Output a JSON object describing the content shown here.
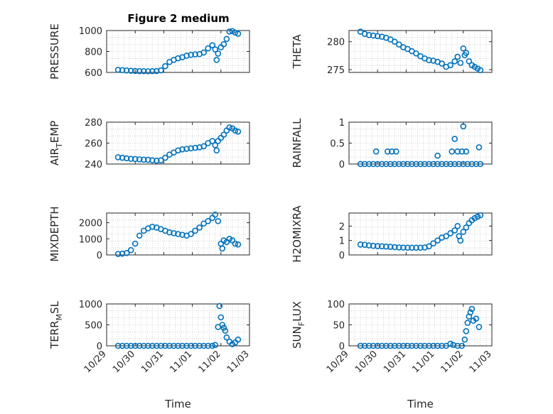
{
  "figure": {
    "title": "Figure 2 medium",
    "background": "#ffffff",
    "marker_color": "#0072BD",
    "axis_color": "#262626",
    "grid_color": "#c8c8c8"
  },
  "chart_data": [
    {
      "type": "scatter",
      "id": "pressure",
      "ylabel": "PRESSURE",
      "ylabel_sub": "",
      "xlabel": "",
      "ylim": [
        600,
        1000
      ],
      "yticks": [
        600,
        800,
        1000
      ],
      "ytick_labels": [
        "600",
        "800",
        "1000"
      ],
      "xlim": [
        0,
        5
      ],
      "xtick_labels_shown": false,
      "grid": true,
      "points": [
        [
          0.4,
          625
        ],
        [
          0.55,
          622
        ],
        [
          0.7,
          619
        ],
        [
          0.85,
          616
        ],
        [
          1.0,
          614
        ],
        [
          1.15,
          612
        ],
        [
          1.3,
          612
        ],
        [
          1.45,
          611
        ],
        [
          1.6,
          612
        ],
        [
          1.75,
          613
        ],
        [
          1.9,
          620
        ],
        [
          2.05,
          660
        ],
        [
          2.2,
          700
        ],
        [
          2.35,
          720
        ],
        [
          2.5,
          735
        ],
        [
          2.65,
          745
        ],
        [
          2.8,
          760
        ],
        [
          2.95,
          768
        ],
        [
          3.1,
          772
        ],
        [
          3.25,
          775
        ],
        [
          3.4,
          790
        ],
        [
          3.55,
          830
        ],
        [
          3.7,
          860
        ],
        [
          3.8,
          820
        ],
        [
          3.85,
          720
        ],
        [
          3.9,
          780
        ],
        [
          4.0,
          840
        ],
        [
          4.1,
          870
        ],
        [
          4.2,
          920
        ],
        [
          4.3,
          990
        ],
        [
          4.4,
          995
        ],
        [
          4.5,
          980
        ],
        [
          4.6,
          970
        ]
      ]
    },
    {
      "type": "scatter",
      "id": "theta",
      "ylabel": "THETA",
      "ylabel_sub": "",
      "xlabel": "",
      "ylim": [
        274.5,
        282
      ],
      "yticks": [
        275,
        280
      ],
      "ytick_labels": [
        "275",
        "280"
      ],
      "xlim": [
        0,
        5
      ],
      "xtick_labels_shown": false,
      "grid": true,
      "points": [
        [
          0.4,
          281.8
        ],
        [
          0.55,
          281.4
        ],
        [
          0.7,
          281.2
        ],
        [
          0.85,
          281.1
        ],
        [
          1.0,
          281.0
        ],
        [
          1.15,
          280.9
        ],
        [
          1.3,
          280.7
        ],
        [
          1.45,
          280.4
        ],
        [
          1.6,
          280.0
        ],
        [
          1.75,
          279.5
        ],
        [
          1.9,
          279.0
        ],
        [
          2.05,
          278.7
        ],
        [
          2.2,
          278.3
        ],
        [
          2.35,
          277.9
        ],
        [
          2.5,
          277.4
        ],
        [
          2.65,
          277.0
        ],
        [
          2.8,
          276.7
        ],
        [
          2.95,
          276.6
        ],
        [
          3.1,
          276.4
        ],
        [
          3.25,
          276.1
        ],
        [
          3.4,
          275.5
        ],
        [
          3.55,
          275.8
        ],
        [
          3.7,
          276.5
        ],
        [
          3.8,
          277.3
        ],
        [
          3.9,
          276.2
        ],
        [
          4.0,
          278.8
        ],
        [
          4.05,
          277.6
        ],
        [
          4.1,
          278.0
        ],
        [
          4.2,
          276.5
        ],
        [
          4.3,
          275.8
        ],
        [
          4.4,
          275.5
        ],
        [
          4.5,
          275.2
        ],
        [
          4.6,
          274.9
        ]
      ]
    },
    {
      "type": "scatter",
      "id": "air_temp",
      "ylabel": "AIR",
      "ylabel_sub": "T",
      "ylabel_suffix": "EMP",
      "xlabel": "",
      "ylim": [
        240,
        280
      ],
      "yticks": [
        240,
        260,
        280
      ],
      "ytick_labels": [
        "240",
        "260",
        "280"
      ],
      "xlim": [
        0,
        5
      ],
      "xtick_labels_shown": false,
      "grid": true,
      "points": [
        [
          0.4,
          246.5
        ],
        [
          0.55,
          246
        ],
        [
          0.7,
          245.5
        ],
        [
          0.85,
          245
        ],
        [
          1.0,
          244.8
        ],
        [
          1.15,
          244.5
        ],
        [
          1.3,
          244.2
        ],
        [
          1.45,
          244
        ],
        [
          1.6,
          243.5
        ],
        [
          1.75,
          243.2
        ],
        [
          1.9,
          243.5
        ],
        [
          2.05,
          246
        ],
        [
          2.2,
          249
        ],
        [
          2.35,
          251
        ],
        [
          2.5,
          253
        ],
        [
          2.65,
          254
        ],
        [
          2.8,
          254.5
        ],
        [
          2.95,
          255
        ],
        [
          3.1,
          255.5
        ],
        [
          3.25,
          256
        ],
        [
          3.4,
          257
        ],
        [
          3.55,
          260
        ],
        [
          3.7,
          262
        ],
        [
          3.8,
          258
        ],
        [
          3.85,
          253
        ],
        [
          3.9,
          262
        ],
        [
          4.0,
          265
        ],
        [
          4.1,
          268
        ],
        [
          4.2,
          272
        ],
        [
          4.3,
          275
        ],
        [
          4.4,
          274
        ],
        [
          4.5,
          272
        ],
        [
          4.6,
          271
        ]
      ]
    },
    {
      "type": "scatter",
      "id": "rainfall",
      "ylabel": "RAINFALL",
      "ylabel_sub": "",
      "xlabel": "",
      "ylim": [
        0,
        1
      ],
      "yticks": [
        0,
        0.5,
        1
      ],
      "ytick_labels": [
        "0",
        "0.5",
        "1"
      ],
      "xlim": [
        0,
        5
      ],
      "xtick_labels_shown": false,
      "grid": true,
      "points": [
        [
          0.4,
          0
        ],
        [
          0.55,
          0
        ],
        [
          0.7,
          0
        ],
        [
          0.85,
          0
        ],
        [
          1.0,
          0
        ],
        [
          1.15,
          0
        ],
        [
          1.3,
          0
        ],
        [
          1.45,
          0
        ],
        [
          1.6,
          0
        ],
        [
          1.75,
          0
        ],
        [
          1.9,
          0
        ],
        [
          2.05,
          0
        ],
        [
          2.2,
          0
        ],
        [
          2.35,
          0
        ],
        [
          2.5,
          0
        ],
        [
          2.65,
          0
        ],
        [
          2.8,
          0
        ],
        [
          2.95,
          0
        ],
        [
          3.1,
          0
        ],
        [
          3.25,
          0
        ],
        [
          3.4,
          0
        ],
        [
          3.55,
          0
        ],
        [
          3.7,
          0
        ],
        [
          3.85,
          0
        ],
        [
          4.0,
          0
        ],
        [
          4.15,
          0
        ],
        [
          4.3,
          0
        ],
        [
          4.45,
          0
        ],
        [
          4.6,
          0
        ],
        [
          0.95,
          0.3
        ],
        [
          1.35,
          0.3
        ],
        [
          1.5,
          0.3
        ],
        [
          1.65,
          0.3
        ],
        [
          3.1,
          0.2
        ],
        [
          3.6,
          0.3
        ],
        [
          3.7,
          0.6
        ],
        [
          3.8,
          0.3
        ],
        [
          3.95,
          0.3
        ],
        [
          4.0,
          0.9
        ],
        [
          4.1,
          0.3
        ],
        [
          4.55,
          0.4
        ]
      ]
    },
    {
      "type": "scatter",
      "id": "mixdepth",
      "ylabel": "MIXDEPTH",
      "ylabel_sub": "",
      "xlabel": "",
      "ylim": [
        0,
        2600
      ],
      "yticks": [
        0,
        1000,
        2000
      ],
      "ytick_labels": [
        "0",
        "1000",
        "2000"
      ],
      "xlim": [
        0,
        5
      ],
      "xtick_labels_shown": false,
      "grid": true,
      "points": [
        [
          0.4,
          60
        ],
        [
          0.55,
          80
        ],
        [
          0.7,
          120
        ],
        [
          0.85,
          300
        ],
        [
          1.0,
          700
        ],
        [
          1.15,
          1200
        ],
        [
          1.3,
          1500
        ],
        [
          1.45,
          1650
        ],
        [
          1.6,
          1750
        ],
        [
          1.75,
          1700
        ],
        [
          1.9,
          1600
        ],
        [
          2.05,
          1500
        ],
        [
          2.2,
          1400
        ],
        [
          2.35,
          1350
        ],
        [
          2.5,
          1300
        ],
        [
          2.65,
          1250
        ],
        [
          2.8,
          1200
        ],
        [
          2.95,
          1300
        ],
        [
          3.1,
          1500
        ],
        [
          3.25,
          1700
        ],
        [
          3.4,
          1950
        ],
        [
          3.55,
          2100
        ],
        [
          3.7,
          2300
        ],
        [
          3.8,
          2500
        ],
        [
          3.9,
          2100
        ],
        [
          4.0,
          700
        ],
        [
          4.05,
          400
        ],
        [
          4.1,
          900
        ],
        [
          4.2,
          800
        ],
        [
          4.3,
          1000
        ],
        [
          4.4,
          900
        ],
        [
          4.5,
          700
        ],
        [
          4.6,
          650
        ]
      ]
    },
    {
      "type": "scatter",
      "id": "h2omixra",
      "ylabel": "H2OMIXRA",
      "ylabel_sub": "",
      "xlabel": "",
      "ylim": [
        0,
        2.9
      ],
      "yticks": [
        0,
        1,
        2
      ],
      "ytick_labels": [
        "0",
        "1",
        "2"
      ],
      "xlim": [
        0,
        5
      ],
      "xtick_labels_shown": false,
      "grid": true,
      "points": [
        [
          0.4,
          0.72
        ],
        [
          0.55,
          0.7
        ],
        [
          0.7,
          0.66
        ],
        [
          0.85,
          0.63
        ],
        [
          1.0,
          0.61
        ],
        [
          1.15,
          0.6
        ],
        [
          1.3,
          0.58
        ],
        [
          1.45,
          0.56
        ],
        [
          1.6,
          0.54
        ],
        [
          1.75,
          0.52
        ],
        [
          1.9,
          0.51
        ],
        [
          2.05,
          0.5
        ],
        [
          2.2,
          0.5
        ],
        [
          2.35,
          0.5
        ],
        [
          2.5,
          0.5
        ],
        [
          2.65,
          0.52
        ],
        [
          2.8,
          0.6
        ],
        [
          2.95,
          0.8
        ],
        [
          3.1,
          1.0
        ],
        [
          3.25,
          1.2
        ],
        [
          3.4,
          1.3
        ],
        [
          3.55,
          1.5
        ],
        [
          3.7,
          1.7
        ],
        [
          3.8,
          2.0
        ],
        [
          3.85,
          1.3
        ],
        [
          3.9,
          1.0
        ],
        [
          4.0,
          1.6
        ],
        [
          4.1,
          1.9
        ],
        [
          4.2,
          2.2
        ],
        [
          4.3,
          2.4
        ],
        [
          4.4,
          2.55
        ],
        [
          4.5,
          2.65
        ],
        [
          4.6,
          2.75
        ]
      ]
    },
    {
      "type": "scatter",
      "id": "terr_msl",
      "ylabel": "TERR",
      "ylabel_sub": "M",
      "ylabel_suffix": "SL",
      "xlabel": "Time",
      "ylim": [
        0,
        1000
      ],
      "yticks": [
        0,
        500,
        1000
      ],
      "ytick_labels": [
        "0",
        "500",
        "1000"
      ],
      "xlim": [
        0,
        5
      ],
      "xtick_labels_shown": true,
      "xticks": [
        0,
        1,
        2,
        3,
        4,
        5
      ],
      "xtick_labels": [
        "10/29",
        "10/30",
        "10/31",
        "11/01",
        "11/02",
        "11/03"
      ],
      "grid": true,
      "points": [
        [
          0.4,
          0
        ],
        [
          0.55,
          0
        ],
        [
          0.7,
          0
        ],
        [
          0.85,
          0
        ],
        [
          1.0,
          0
        ],
        [
          1.15,
          0
        ],
        [
          1.3,
          0
        ],
        [
          1.45,
          0
        ],
        [
          1.6,
          0
        ],
        [
          1.75,
          0
        ],
        [
          1.9,
          0
        ],
        [
          2.05,
          0
        ],
        [
          2.2,
          0
        ],
        [
          2.35,
          0
        ],
        [
          2.5,
          0
        ],
        [
          2.65,
          0
        ],
        [
          2.8,
          0
        ],
        [
          2.95,
          0
        ],
        [
          3.1,
          0
        ],
        [
          3.25,
          0
        ],
        [
          3.4,
          0
        ],
        [
          3.55,
          0
        ],
        [
          3.7,
          0
        ],
        [
          3.8,
          20
        ],
        [
          3.9,
          450
        ],
        [
          3.95,
          950
        ],
        [
          4.0,
          680
        ],
        [
          4.05,
          500
        ],
        [
          4.1,
          430
        ],
        [
          4.15,
          360
        ],
        [
          4.2,
          200
        ],
        [
          4.3,
          100
        ],
        [
          4.4,
          40
        ],
        [
          4.5,
          80
        ],
        [
          4.6,
          150
        ]
      ]
    },
    {
      "type": "scatter",
      "id": "sun_flux",
      "ylabel": "SUN",
      "ylabel_sub": "F",
      "ylabel_suffix": "LUX",
      "xlabel": "Time",
      "ylim": [
        0,
        100
      ],
      "yticks": [
        0,
        50,
        100
      ],
      "ytick_labels": [
        "0",
        "50",
        "100"
      ],
      "xlim": [
        0,
        5
      ],
      "xtick_labels_shown": true,
      "xticks": [
        0,
        1,
        2,
        3,
        4,
        5
      ],
      "xtick_labels": [
        "10/29",
        "10/30",
        "10/31",
        "11/01",
        "11/02",
        "11/03"
      ],
      "grid": true,
      "points": [
        [
          0.4,
          0
        ],
        [
          0.55,
          0
        ],
        [
          0.7,
          0
        ],
        [
          0.85,
          0
        ],
        [
          1.0,
          0
        ],
        [
          1.15,
          0
        ],
        [
          1.3,
          0
        ],
        [
          1.45,
          0
        ],
        [
          1.6,
          0
        ],
        [
          1.75,
          0
        ],
        [
          1.9,
          0
        ],
        [
          2.05,
          0
        ],
        [
          2.2,
          0
        ],
        [
          2.35,
          0
        ],
        [
          2.5,
          0
        ],
        [
          2.65,
          0
        ],
        [
          2.8,
          0
        ],
        [
          2.95,
          0
        ],
        [
          3.1,
          0
        ],
        [
          3.25,
          0
        ],
        [
          3.4,
          0
        ],
        [
          3.55,
          5
        ],
        [
          3.65,
          2
        ],
        [
          3.8,
          0
        ],
        [
          3.95,
          0
        ],
        [
          4.05,
          15
        ],
        [
          4.1,
          35
        ],
        [
          4.15,
          55
        ],
        [
          4.2,
          70
        ],
        [
          4.25,
          80
        ],
        [
          4.3,
          88
        ],
        [
          4.35,
          60
        ],
        [
          4.45,
          65
        ],
        [
          4.55,
          45
        ]
      ]
    }
  ]
}
